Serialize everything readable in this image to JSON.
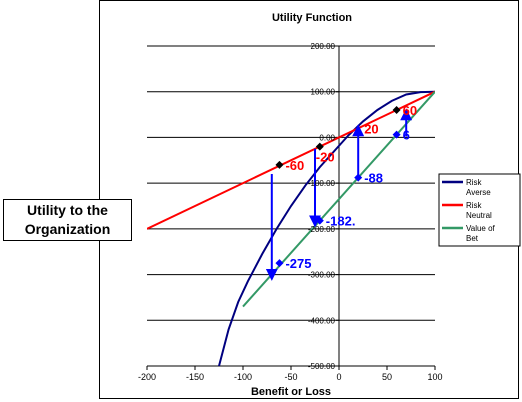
{
  "side_label": "Utility to the\nOrganization",
  "chart_data": {
    "type": "line",
    "title": "Utility Function",
    "xlabel": "Benefit or Loss",
    "ylabel": "",
    "xlim": [
      -200,
      100
    ],
    "ylim": [
      -500,
      200
    ],
    "x_ticks": [
      -200,
      -150,
      -100,
      -50,
      0,
      50,
      100
    ],
    "x_tick_labels": [
      "-200",
      "-150",
      "-100",
      "-50",
      "0",
      "50",
      "100"
    ],
    "y_ticks": [
      200,
      100,
      0,
      -100,
      -200,
      -300,
      -400,
      -500
    ],
    "y_tick_labels": [
      "200.00",
      "100.00",
      "0.00",
      "-100.00",
      "-200.00",
      "-300.00",
      "-400.00",
      "-500.00"
    ],
    "grid": true,
    "legend_position": "right",
    "series": [
      {
        "name": "Risk Averse",
        "color": "#000080",
        "x": [
          -125,
          -115,
          -105,
          -95,
          -80,
          -65,
          -50,
          -35,
          -20,
          -5,
          10,
          25,
          40,
          55,
          70,
          85,
          100
        ],
        "y": [
          -500,
          -420,
          -360,
          -315,
          -255,
          -200,
          -150,
          -105,
          -65,
          -30,
          5,
          35,
          60,
          80,
          94,
          99,
          100
        ]
      },
      {
        "name": "Risk Neutral",
        "color": "#ff0000",
        "x": [
          -200,
          100
        ],
        "y": [
          -200,
          100
        ]
      },
      {
        "name": "Value of Bet",
        "color": "#339966",
        "x": [
          -100,
          100
        ],
        "y": [
          -370,
          100
        ]
      }
    ],
    "black_points": [
      {
        "x": -62,
        "y": -60
      },
      {
        "x": -20,
        "y": -20
      },
      {
        "x": 60,
        "y": 60
      }
    ],
    "blue_points": [
      {
        "x": -62,
        "y": -275
      },
      {
        "x": -20,
        "y": -182
      },
      {
        "x": 20,
        "y": -88
      },
      {
        "x": 60,
        "y": 6
      }
    ],
    "arrows": [
      {
        "x": -70,
        "y_from": -80,
        "y_to": -305
      },
      {
        "x": -25,
        "y_from": -25,
        "y_to": -188
      },
      {
        "x": 20,
        "y_from": -92,
        "y_to": 20
      },
      {
        "x": 70,
        "y_from": 2,
        "y_to": 55
      }
    ],
    "annotations": [
      {
        "text": "-60",
        "x": -62,
        "y": -60,
        "color": "#ff0000",
        "anchor": "right"
      },
      {
        "text": "-20",
        "x": -20,
        "y": -20,
        "color": "#ff0000",
        "anchor": "left-below"
      },
      {
        "text": "20",
        "x": 20,
        "y": 20,
        "color": "#ff0000",
        "anchor": "right"
      },
      {
        "text": "60",
        "x": 60,
        "y": 60,
        "color": "#ff0000",
        "anchor": "right"
      },
      {
        "text": "-275",
        "x": -62,
        "y": -275,
        "color": "#0000ff",
        "anchor": "right"
      },
      {
        "text": "-182.",
        "x": -20,
        "y": -182,
        "color": "#0000ff",
        "anchor": "right"
      },
      {
        "text": "-88",
        "x": 20,
        "y": -88,
        "color": "#0000ff",
        "anchor": "right"
      },
      {
        "text": "6",
        "x": 60,
        "y": 6,
        "color": "#0000ff",
        "anchor": "right"
      }
    ],
    "legend": [
      {
        "label": "Risk Averse",
        "color": "#000080"
      },
      {
        "label": "Risk Neutral",
        "color": "#ff0000"
      },
      {
        "label": "Value of Bet",
        "color": "#339966"
      }
    ]
  }
}
